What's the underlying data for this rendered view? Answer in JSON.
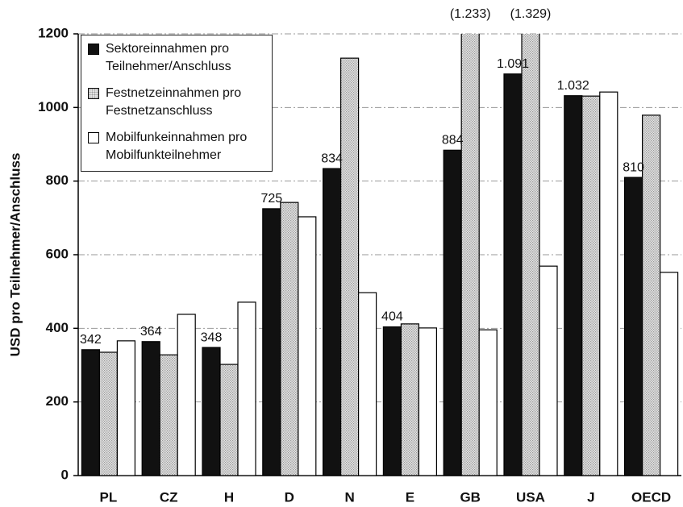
{
  "chart_data": {
    "type": "bar",
    "y_axis_label": "USD pro Teilnehmer/Anschluss",
    "categories": [
      "PL",
      "CZ",
      "H",
      "D",
      "N",
      "E",
      "GB",
      "USA",
      "J",
      "OECD"
    ],
    "series": [
      {
        "name": "Sektoreinnahmen pro Teilnehmer/Anschluss",
        "color": "#111111",
        "pattern": "solid",
        "values": [
          342,
          364,
          348,
          725,
          834,
          404,
          884,
          1091,
          1032,
          810
        ],
        "value_labels": [
          "342",
          "364",
          "348",
          "725",
          "834",
          "404",
          "884",
          "1.091",
          "1.032",
          "810"
        ]
      },
      {
        "name": "Festnetzeinnahmen pro Festnetzanschluss",
        "color": "#9a9a9a",
        "pattern": "dots",
        "values": [
          335,
          328,
          302,
          742,
          1134,
          412,
          1233,
          1329,
          1031,
          979
        ],
        "value_labels": [
          null,
          null,
          null,
          null,
          null,
          null,
          "(1.233)",
          "(1.329)",
          null,
          null
        ]
      },
      {
        "name": "Mobilfunkeinnahmen pro Mobilfunkteilnehmer",
        "color": "#ffffff",
        "pattern": "solid",
        "values": [
          366,
          438,
          471,
          703,
          497,
          401,
          396,
          569,
          1042,
          552
        ]
      }
    ],
    "ylim": [
      0,
      1200
    ],
    "yticks": [
      0,
      200,
      400,
      600,
      800,
      1000,
      1200
    ],
    "grid": true
  }
}
